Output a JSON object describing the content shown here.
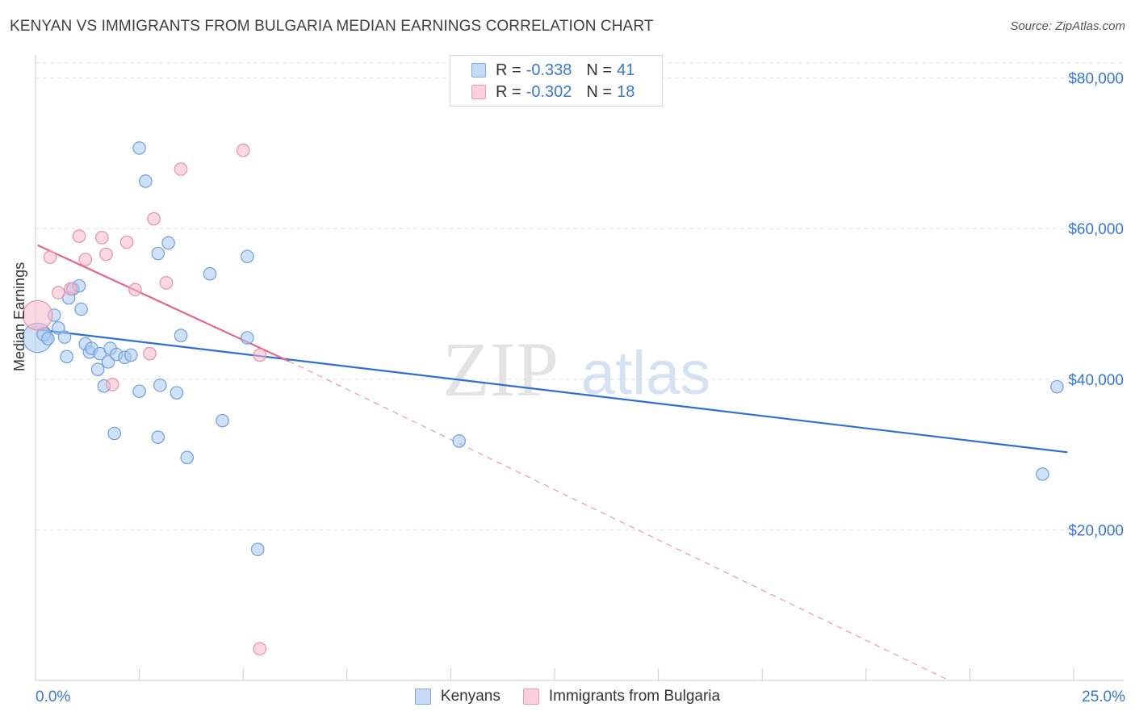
{
  "title": "KENYAN VS IMMIGRANTS FROM BULGARIA MEDIAN EARNINGS CORRELATION CHART",
  "source": "Source: ZipAtlas.com",
  "watermark": {
    "zip": "ZIP",
    "atlas": "atlas"
  },
  "legend": {
    "rows": [
      {
        "r_label": "R =",
        "r_value": "-0.338",
        "n_label": "N =",
        "n_value": "41",
        "color": "#a8c8f0"
      },
      {
        "r_label": "R =",
        "r_value": "-0.302",
        "n_label": "N =",
        "n_value": "18",
        "color": "#f7b8cb"
      }
    ]
  },
  "bottom_legend": {
    "kenyans": "Kenyans",
    "bulgaria": "Immigrants from Bulgaria"
  },
  "chart_data": {
    "type": "scatter",
    "title": "KENYAN VS IMMIGRANTS FROM BULGARIA MEDIAN EARNINGS CORRELATION CHART",
    "xlabel": "",
    "ylabel": "Median Earnings",
    "xlim": [
      0,
      25
    ],
    "ylim": [
      0,
      82000
    ],
    "x_tick_labels": [
      "0.0%",
      "25.0%"
    ],
    "y_ticks": [
      20000,
      40000,
      60000,
      80000
    ],
    "y_tick_labels": [
      "$20,000",
      "$40,000",
      "$60,000",
      "$80,000"
    ],
    "grid": true,
    "legend_position": "top-center",
    "colors": {
      "kenyans": "#a8c8f0",
      "kenyans_stroke": "#6f9fe0",
      "kenyans_line": "#2e6fd4",
      "bulgaria": "#f7b8cb",
      "bulgaria_stroke": "#ea8fab",
      "bulgaria_line": "#e5678f",
      "tick_text": "#3a78d4"
    },
    "series": [
      {
        "name": "Kenyans",
        "points": [
          [
            0.05,
            45500
          ],
          [
            0.2,
            46000
          ],
          [
            0.3,
            45400
          ],
          [
            0.45,
            48500
          ],
          [
            0.55,
            46800
          ],
          [
            0.7,
            45600
          ],
          [
            0.8,
            50800
          ],
          [
            0.9,
            52000
          ],
          [
            1.05,
            52400
          ],
          [
            0.75,
            43000
          ],
          [
            1.1,
            49300
          ],
          [
            1.2,
            44700
          ],
          [
            1.3,
            43600
          ],
          [
            1.35,
            44100
          ],
          [
            1.5,
            41300
          ],
          [
            1.55,
            43400
          ],
          [
            1.65,
            39100
          ],
          [
            1.75,
            42300
          ],
          [
            1.8,
            44100
          ],
          [
            1.95,
            43300
          ],
          [
            2.15,
            42900
          ],
          [
            2.3,
            43200
          ],
          [
            1.9,
            32800
          ],
          [
            2.5,
            38400
          ],
          [
            2.65,
            66300
          ],
          [
            2.95,
            32300
          ],
          [
            3.0,
            39200
          ],
          [
            3.2,
            58100
          ],
          [
            3.4,
            38200
          ],
          [
            3.5,
            45800
          ],
          [
            3.65,
            29600
          ],
          [
            2.95,
            56700
          ],
          [
            4.2,
            54000
          ],
          [
            4.5,
            34500
          ],
          [
            5.1,
            56300
          ],
          [
            5.1,
            45500
          ],
          [
            5.35,
            17400
          ],
          [
            2.5,
            70700
          ],
          [
            10.2,
            31800
          ],
          [
            24.6,
            39000
          ],
          [
            24.25,
            27400
          ]
        ],
        "sizes": [
          26,
          12,
          11,
          11,
          11,
          11,
          11,
          11,
          11,
          11,
          11,
          11,
          11,
          11,
          11,
          11,
          11,
          11,
          11,
          11,
          11,
          11,
          11,
          11,
          11,
          11,
          11,
          11,
          11,
          11,
          11,
          11,
          11,
          11,
          11,
          11,
          11,
          11,
          11,
          11,
          11
        ],
        "trend": {
          "x": [
            0.05,
            24.85
          ],
          "y": [
            46600,
            30300
          ]
        }
      },
      {
        "name": "Immigrants from Bulgaria",
        "points": [
          [
            0.05,
            48500
          ],
          [
            0.35,
            56200
          ],
          [
            0.55,
            51500
          ],
          [
            0.85,
            52000
          ],
          [
            1.05,
            59000
          ],
          [
            1.2,
            55900
          ],
          [
            1.6,
            58800
          ],
          [
            1.7,
            56600
          ],
          [
            1.85,
            39300
          ],
          [
            2.2,
            58200
          ],
          [
            2.4,
            51900
          ],
          [
            2.75,
            43400
          ],
          [
            2.85,
            61300
          ],
          [
            3.15,
            52800
          ],
          [
            3.5,
            67900
          ],
          [
            5.0,
            70400
          ],
          [
            5.4,
            43200
          ],
          [
            5.4,
            4200
          ]
        ],
        "sizes": [
          26,
          11,
          11,
          11,
          11,
          11,
          11,
          11,
          11,
          11,
          11,
          11,
          11,
          11,
          11,
          11,
          11,
          11
        ],
        "trend": {
          "x": [
            0.05,
            6.1
          ],
          "y": [
            57800,
            42400
          ]
        },
        "trend_extension": {
          "x": [
            6.1,
            22.0
          ],
          "y": [
            42400,
            0
          ]
        }
      }
    ]
  }
}
